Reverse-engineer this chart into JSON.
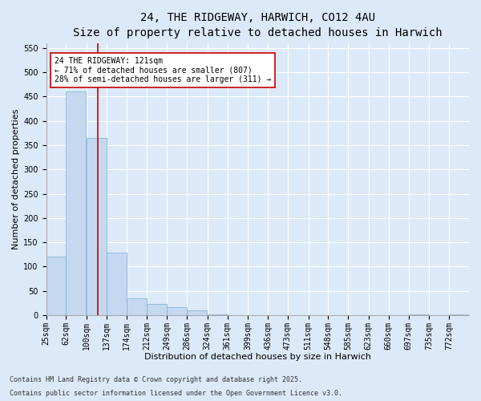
{
  "title": "24, THE RIDGEWAY, HARWICH, CO12 4AU",
  "subtitle": "Size of property relative to detached houses in Harwich",
  "xlabel": "Distribution of detached houses by size in Harwich",
  "ylabel": "Number of detached properties",
  "footer1": "Contains HM Land Registry data © Crown copyright and database right 2025.",
  "footer2": "Contains public sector information licensed under the Open Government Licence v3.0.",
  "annotation_title": "24 THE RIDGEWAY: 121sqm",
  "annotation_line1": "← 71% of detached houses are smaller (807)",
  "annotation_line2": "28% of semi-detached houses are larger (311) →",
  "subject_size": 121,
  "bar_color": "#c5d8f0",
  "bar_edge_color": "#7bafd4",
  "vline_color": "#cc0000",
  "annotation_box_color": "#cc0000",
  "background_color": "#dce9f8",
  "plot_bg_color": "#dce9f8",
  "categories": [
    "25sqm",
    "62sqm",
    "100sqm",
    "137sqm",
    "174sqm",
    "212sqm",
    "249sqm",
    "286sqm",
    "324sqm",
    "361sqm",
    "399sqm",
    "436sqm",
    "473sqm",
    "511sqm",
    "548sqm",
    "585sqm",
    "623sqm",
    "660sqm",
    "697sqm",
    "735sqm",
    "772sqm"
  ],
  "bin_starts": [
    25,
    62,
    100,
    137,
    174,
    212,
    249,
    286,
    324,
    361,
    399,
    436,
    473,
    511,
    548,
    585,
    623,
    660,
    697,
    735,
    772
  ],
  "bin_width": 37,
  "values": [
    120,
    460,
    365,
    128,
    35,
    23,
    17,
    10,
    1,
    0,
    0,
    0,
    0,
    0,
    0,
    0,
    0,
    0,
    1,
    0,
    1
  ],
  "ylim": [
    0,
    560
  ],
  "yticks": [
    0,
    50,
    100,
    150,
    200,
    250,
    300,
    350,
    400,
    450,
    500,
    550
  ],
  "grid_color": "#ffffff",
  "title_fontsize": 10,
  "subtitle_fontsize": 9,
  "axis_label_fontsize": 8,
  "tick_fontsize": 7,
  "annotation_fontsize": 7,
  "footer_fontsize": 6
}
